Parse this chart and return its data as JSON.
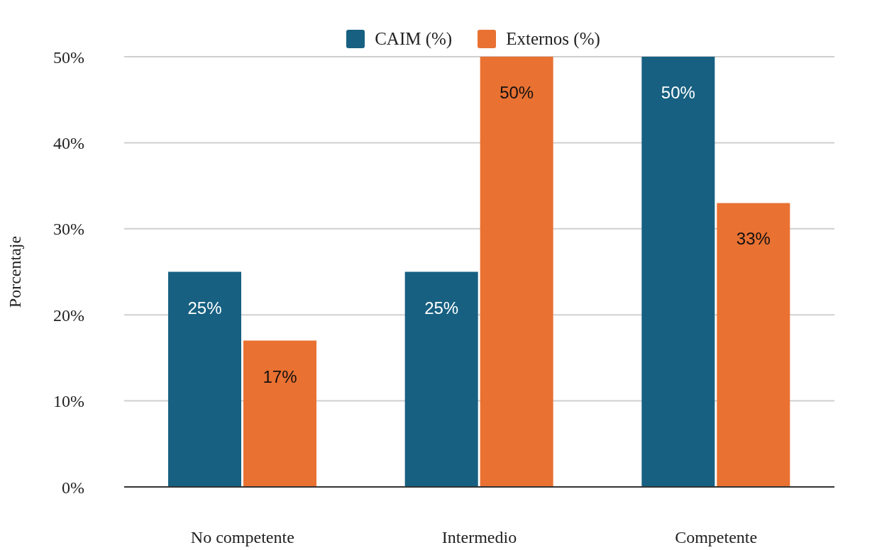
{
  "chart_data": {
    "type": "bar",
    "categories": [
      "No competente",
      "Intermedio",
      "Competente"
    ],
    "series": [
      {
        "name": "CAIM (%)",
        "color": "#176081",
        "values": [
          25,
          25,
          50
        ],
        "value_labels": [
          "25%",
          "25%",
          "50%"
        ]
      },
      {
        "name": "Externos (%)",
        "color": "#e97132",
        "values": [
          17,
          50,
          33
        ],
        "value_labels": [
          "17%",
          "50%",
          "33%"
        ]
      }
    ],
    "ylabel": "Porcentaje",
    "ylim": [
      0,
      50
    ],
    "yticks": [
      {
        "value": 0,
        "label": "0%"
      },
      {
        "value": 10,
        "label": "10%"
      },
      {
        "value": 20,
        "label": "20%"
      },
      {
        "value": 30,
        "label": "30%"
      },
      {
        "value": 40,
        "label": "40%"
      },
      {
        "value": 50,
        "label": "50%"
      }
    ],
    "grid": "y",
    "legend": "top"
  }
}
